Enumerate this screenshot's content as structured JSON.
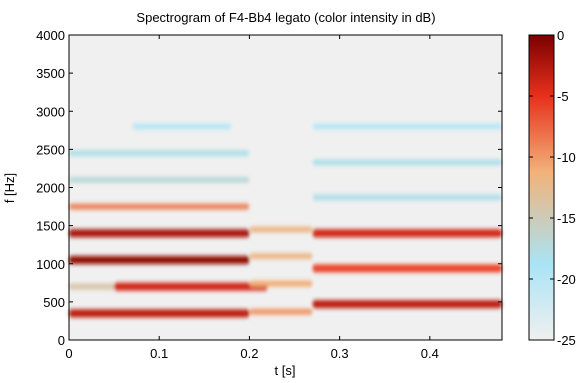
{
  "chart_data": {
    "type": "heatmap",
    "title": "Spectrogram of F4-Bb4 legato (color intensity in dB)",
    "xlabel": "t [s]",
    "ylabel": "f [Hz]",
    "xlim": [
      0,
      0.48
    ],
    "ylim": [
      0,
      4000
    ],
    "x_ticks": [
      0,
      0.1,
      0.2,
      0.3,
      0.4
    ],
    "x_tick_labels": [
      "0",
      "0.1",
      "0.2",
      "0.3",
      "0.4"
    ],
    "y_ticks": [
      0,
      500,
      1000,
      1500,
      2000,
      2500,
      3000,
      3500,
      4000
    ],
    "y_tick_labels": [
      "0",
      "500",
      "1000",
      "1500",
      "2000",
      "2500",
      "3000",
      "3500",
      "4000"
    ],
    "colorbar": {
      "min": -25,
      "max": 0,
      "ticks": [
        0,
        -5,
        -10,
        -15,
        -20,
        -25
      ],
      "tick_labels": [
        "0",
        "-5",
        "-10",
        "-15",
        "-20",
        "-25"
      ],
      "colormap": [
        "#f0f0f0",
        "#a9e4f5",
        "#f2b27a",
        "#e8301c",
        "#7b0000"
      ]
    },
    "background_db": -25,
    "series": [
      {
        "t": [
          0,
          0.2
        ],
        "f": 350,
        "db": -3
      },
      {
        "t": [
          0,
          0.2
        ],
        "f": 700,
        "db": -14
      },
      {
        "t": [
          0.05,
          0.22
        ],
        "f": 700,
        "db": -4
      },
      {
        "t": [
          0,
          0.2
        ],
        "f": 1050,
        "db": -1
      },
      {
        "t": [
          0,
          0.2
        ],
        "f": 1400,
        "db": -2
      },
      {
        "t": [
          0,
          0.2
        ],
        "f": 1750,
        "db": -9
      },
      {
        "t": [
          0,
          0.2
        ],
        "f": 2100,
        "db": -17
      },
      {
        "t": [
          0,
          0.2
        ],
        "f": 2450,
        "db": -18
      },
      {
        "t": [
          0.07,
          0.18
        ],
        "f": 2800,
        "db": -20
      },
      {
        "t": [
          0.2,
          0.27
        ],
        "f": 370,
        "db": -10
      },
      {
        "t": [
          0.2,
          0.27
        ],
        "f": 740,
        "db": -11
      },
      {
        "t": [
          0.2,
          0.27
        ],
        "f": 1100,
        "db": -12
      },
      {
        "t": [
          0.2,
          0.27
        ],
        "f": 1450,
        "db": -12
      },
      {
        "t": [
          0.27,
          0.48
        ],
        "f": 470,
        "db": -3
      },
      {
        "t": [
          0.27,
          0.48
        ],
        "f": 940,
        "db": -6
      },
      {
        "t": [
          0.27,
          0.48
        ],
        "f": 1400,
        "db": -4
      },
      {
        "t": [
          0.27,
          0.48
        ],
        "f": 1870,
        "db": -18
      },
      {
        "t": [
          0.27,
          0.48
        ],
        "f": 2330,
        "db": -18
      },
      {
        "t": [
          0.27,
          0.48
        ],
        "f": 2800,
        "db": -20
      }
    ]
  }
}
